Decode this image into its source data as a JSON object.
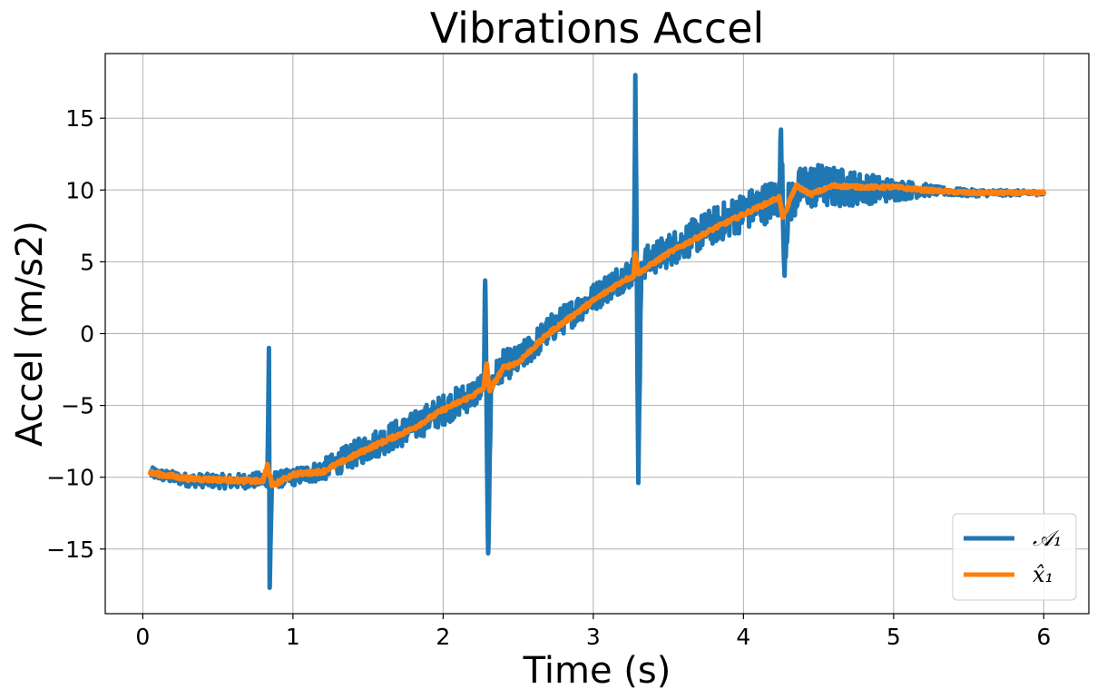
{
  "chart_data": {
    "type": "line",
    "title": "Vibrations Accel",
    "xlabel": "Time (s)",
    "ylabel": "Accel (m/s2)",
    "xlim": [
      -0.25,
      6.3
    ],
    "ylim": [
      -19.5,
      19.5
    ],
    "xticks": [
      0,
      1,
      2,
      3,
      4,
      5,
      6
    ],
    "xtick_labels": [
      "0",
      "1",
      "2",
      "3",
      "4",
      "5",
      "6"
    ],
    "yticks": [
      -15,
      -10,
      -5,
      0,
      5,
      10,
      15
    ],
    "ytick_labels": [
      "−15",
      "−10",
      "−5",
      "0",
      "5",
      "10",
      "15"
    ],
    "grid": true,
    "legend_position": "bottom-right",
    "series": [
      {
        "name": "𝒜₁",
        "color": "#1f77b4",
        "points": [
          [
            0.05,
            -9.7
          ],
          [
            0.3,
            -10.2
          ],
          [
            0.6,
            -10.3
          ],
          [
            0.78,
            -10.2
          ],
          [
            0.83,
            -10.1
          ],
          [
            0.84,
            -1.0
          ],
          [
            0.845,
            -17.7
          ],
          [
            0.86,
            -10.2
          ],
          [
            1.0,
            -10.0
          ],
          [
            1.2,
            -9.5
          ],
          [
            1.5,
            -7.9
          ],
          [
            1.8,
            -6.5
          ],
          [
            2.0,
            -5.3
          ],
          [
            2.2,
            -4.2
          ],
          [
            2.27,
            -3.7
          ],
          [
            2.28,
            3.7
          ],
          [
            2.3,
            -15.3
          ],
          [
            2.32,
            -3.4
          ],
          [
            2.4,
            -2.2
          ],
          [
            2.5,
            -1.9
          ],
          [
            2.7,
            0.2
          ],
          [
            3.0,
            2.5
          ],
          [
            3.2,
            4.0
          ],
          [
            3.27,
            4.3
          ],
          [
            3.28,
            18.0
          ],
          [
            3.3,
            -10.4
          ],
          [
            3.32,
            4.8
          ],
          [
            3.5,
            5.8
          ],
          [
            3.8,
            7.5
          ],
          [
            4.0,
            8.5
          ],
          [
            4.2,
            9.3
          ],
          [
            4.24,
            9.5
          ],
          [
            4.25,
            14.2
          ],
          [
            4.27,
            5.0
          ],
          [
            4.3,
            9.0
          ],
          [
            4.4,
            10.3
          ],
          [
            4.6,
            10.2
          ],
          [
            4.8,
            10.1
          ],
          [
            5.0,
            10.0
          ],
          [
            5.2,
            10.0
          ],
          [
            5.5,
            9.8
          ],
          [
            6.0,
            9.8
          ]
        ],
        "noise_amplitude_profile": [
          [
            0.0,
            0.4
          ],
          [
            1.0,
            0.6
          ],
          [
            1.5,
            1.0
          ],
          [
            2.0,
            1.1
          ],
          [
            3.0,
            1.0
          ],
          [
            4.0,
            1.4
          ],
          [
            4.5,
            1.6
          ],
          [
            5.0,
            0.8
          ],
          [
            5.3,
            0.3
          ],
          [
            6.0,
            0.15
          ]
        ]
      },
      {
        "name": "x̂₁",
        "color": "#ff7f0e",
        "points": [
          [
            0.05,
            -9.7
          ],
          [
            0.3,
            -10.1
          ],
          [
            0.6,
            -10.2
          ],
          [
            0.8,
            -10.3
          ],
          [
            0.83,
            -9.1
          ],
          [
            0.86,
            -10.6
          ],
          [
            1.0,
            -9.8
          ],
          [
            1.2,
            -9.6
          ],
          [
            1.5,
            -8.0
          ],
          [
            1.8,
            -6.6
          ],
          [
            2.0,
            -5.3
          ],
          [
            2.2,
            -4.3
          ],
          [
            2.27,
            -3.8
          ],
          [
            2.29,
            -2.1
          ],
          [
            2.31,
            -4.0
          ],
          [
            2.4,
            -2.4
          ],
          [
            2.5,
            -2.0
          ],
          [
            2.7,
            0.0
          ],
          [
            3.0,
            2.3
          ],
          [
            3.2,
            3.7
          ],
          [
            3.27,
            4.0
          ],
          [
            3.28,
            5.6
          ],
          [
            3.3,
            4.2
          ],
          [
            3.5,
            5.6
          ],
          [
            3.8,
            7.3
          ],
          [
            4.0,
            8.3
          ],
          [
            4.2,
            9.3
          ],
          [
            4.24,
            9.5
          ],
          [
            4.26,
            8.1
          ],
          [
            4.28,
            8.5
          ],
          [
            4.35,
            10.3
          ],
          [
            4.45,
            9.7
          ],
          [
            4.6,
            10.3
          ],
          [
            4.8,
            10.2
          ],
          [
            5.0,
            10.2
          ],
          [
            5.2,
            10.0
          ],
          [
            5.5,
            9.8
          ],
          [
            6.0,
            9.8
          ]
        ],
        "noise_amplitude_profile": [
          [
            0.0,
            0.15
          ],
          [
            6.0,
            0.1
          ]
        ]
      }
    ]
  }
}
